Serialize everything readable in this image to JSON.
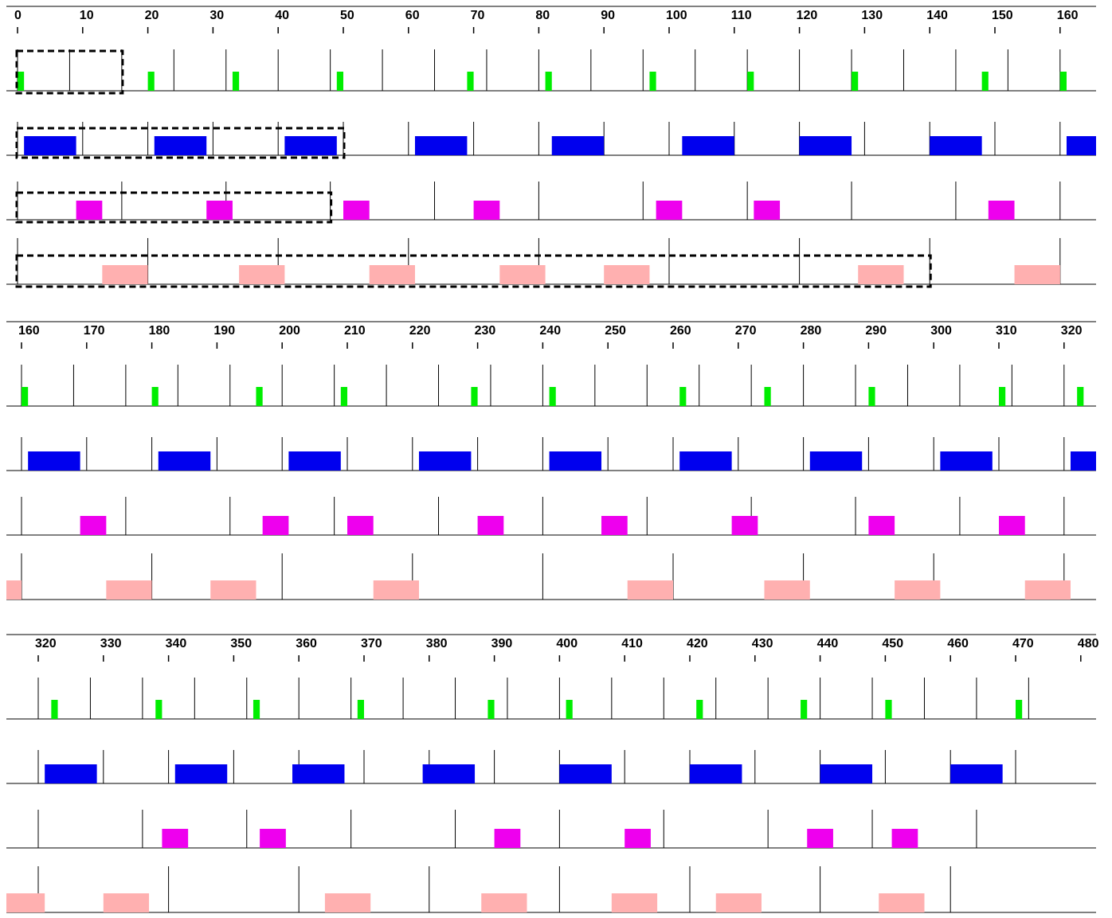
{
  "chart_data": {
    "type": "timeline",
    "title": "",
    "xlabel": "",
    "ylabel": "",
    "x_unit_per_tick": 10,
    "panels": [
      {
        "x_range": [
          0,
          164
        ],
        "ticks": [
          0,
          10,
          20,
          30,
          40,
          50,
          60,
          70,
          80,
          90,
          100,
          110,
          120,
          130,
          140,
          150,
          160
        ]
      },
      {
        "x_range": [
          158,
          324
        ],
        "ticks": [
          160,
          170,
          180,
          190,
          200,
          210,
          220,
          230,
          240,
          250,
          260,
          270,
          280,
          290,
          300,
          310,
          320
        ]
      },
      {
        "x_range": [
          315,
          481
        ],
        "ticks": [
          320,
          330,
          340,
          350,
          360,
          370,
          380,
          390,
          400,
          410,
          420,
          430,
          440,
          450,
          460,
          470,
          480
        ]
      }
    ],
    "series": [
      {
        "color": "#00ee00",
        "period_boundaries": [
          0,
          8,
          16,
          24,
          32,
          40,
          48,
          56,
          64,
          72,
          80,
          88,
          96,
          104,
          112,
          120,
          128,
          136,
          144,
          152,
          160,
          168,
          176,
          184,
          192,
          200,
          208,
          216,
          224,
          232,
          240,
          248,
          256,
          264,
          272,
          280,
          288,
          296,
          304,
          312,
          320,
          328,
          336,
          344,
          352,
          360,
          368,
          376,
          384,
          392,
          400,
          408,
          416,
          424,
          432,
          440,
          448,
          456,
          464,
          472
        ],
        "jobs": [
          [
            0,
            1
          ],
          [
            20,
            21
          ],
          [
            33,
            34
          ],
          [
            49,
            50
          ],
          [
            69,
            70
          ],
          [
            81,
            82
          ],
          [
            97,
            98
          ],
          [
            112,
            113
          ],
          [
            128,
            129
          ],
          [
            148,
            149
          ],
          [
            160,
            161
          ],
          [
            180,
            181
          ],
          [
            196,
            197
          ],
          [
            209,
            210
          ],
          [
            229,
            230
          ],
          [
            241,
            242
          ],
          [
            261,
            262
          ],
          [
            274,
            275
          ],
          [
            290,
            291
          ],
          [
            310,
            311
          ],
          [
            322,
            323
          ],
          [
            338,
            339
          ],
          [
            353,
            354
          ],
          [
            369,
            370
          ],
          [
            389,
            390
          ],
          [
            401,
            402
          ],
          [
            421,
            422
          ],
          [
            437,
            438
          ],
          [
            450,
            451
          ],
          [
            470,
            471
          ]
        ],
        "highlight_box": [
          0,
          16
        ]
      },
      {
        "color": "#0000ee",
        "period_boundaries": [
          0,
          10,
          20,
          30,
          40,
          50,
          60,
          70,
          80,
          90,
          100,
          110,
          120,
          130,
          140,
          150,
          160,
          170,
          180,
          190,
          200,
          210,
          220,
          230,
          240,
          250,
          260,
          270,
          280,
          290,
          300,
          310,
          320,
          330,
          340,
          350,
          360,
          370,
          380,
          390,
          400,
          410,
          420,
          430,
          440,
          450,
          460,
          470
        ],
        "jobs": [
          [
            1,
            9
          ],
          [
            21,
            29
          ],
          [
            41,
            49
          ],
          [
            61,
            69
          ],
          [
            82,
            90
          ],
          [
            102,
            110
          ],
          [
            120,
            128
          ],
          [
            140,
            148
          ],
          [
            161,
            169
          ],
          [
            181,
            189
          ],
          [
            201,
            209
          ],
          [
            221,
            229
          ],
          [
            241,
            249
          ],
          [
            261,
            269
          ],
          [
            281,
            289
          ],
          [
            301,
            309
          ],
          [
            321,
            329
          ],
          [
            341,
            349
          ],
          [
            359,
            367
          ],
          [
            379,
            387
          ],
          [
            400,
            408
          ],
          [
            420,
            428
          ],
          [
            440,
            448
          ],
          [
            460,
            468
          ]
        ],
        "highlight_box": [
          0,
          50
        ]
      },
      {
        "color": "#ee00ee",
        "period_boundaries": [
          0,
          16,
          32,
          48,
          64,
          80,
          96,
          112,
          128,
          144,
          160,
          176,
          192,
          208,
          224,
          240,
          256,
          272,
          288,
          304,
          320,
          336,
          352,
          368,
          384,
          400,
          416,
          432,
          448,
          464
        ],
        "jobs": [
          [
            9,
            13
          ],
          [
            29,
            33
          ],
          [
            50,
            54
          ],
          [
            70,
            74
          ],
          [
            98,
            102
          ],
          [
            113,
            117
          ],
          [
            149,
            153
          ],
          [
            169,
            173
          ],
          [
            197,
            201
          ],
          [
            210,
            214
          ],
          [
            230,
            234
          ],
          [
            249,
            253
          ],
          [
            269,
            273
          ],
          [
            290,
            294
          ],
          [
            310,
            314
          ],
          [
            339,
            343
          ],
          [
            354,
            358
          ],
          [
            390,
            394
          ],
          [
            410,
            414
          ],
          [
            438,
            442
          ],
          [
            451,
            455
          ]
        ],
        "highlight_box": [
          0,
          48
        ]
      },
      {
        "color": "#ffb0b0",
        "period_boundaries": [
          0,
          20,
          40,
          60,
          80,
          100,
          120,
          140,
          160,
          180,
          200,
          220,
          240,
          260,
          280,
          300,
          320,
          340,
          360,
          380,
          400,
          420,
          440,
          460
        ],
        "jobs": [
          [
            13,
            20
          ],
          [
            34,
            41
          ],
          [
            54,
            61
          ],
          [
            74,
            81
          ],
          [
            90,
            97
          ],
          [
            129,
            136
          ],
          [
            153,
            160
          ],
          [
            158,
            160
          ],
          [
            173,
            180
          ],
          [
            189,
            196
          ],
          [
            214,
            221
          ],
          [
            253,
            260
          ],
          [
            274,
            281
          ],
          [
            294,
            301
          ],
          [
            314,
            321
          ],
          [
            315,
            320
          ],
          [
            330,
            337
          ],
          [
            364,
            371
          ],
          [
            388,
            395
          ],
          [
            408,
            415
          ],
          [
            424,
            431
          ],
          [
            449,
            456
          ]
        ],
        "highlight_box": [
          0,
          140
        ]
      }
    ]
  }
}
